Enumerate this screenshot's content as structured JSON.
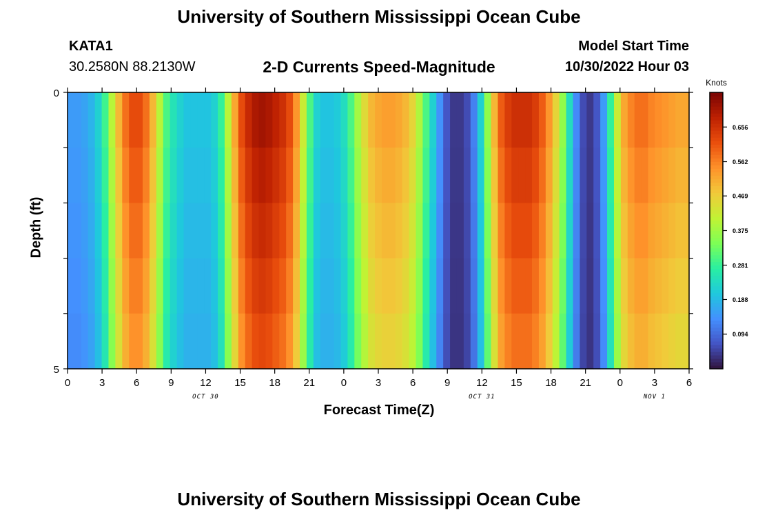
{
  "header": {
    "title_top": "University of Southern Mississippi Ocean Cube",
    "title_bottom": "University of Southern Mississippi Ocean Cube",
    "station": "KATA1",
    "coordinates": "30.2580N  88.2130W",
    "subtitle": "2-D Currents Speed-Magnitude",
    "model_start_label": "Model Start Time",
    "model_start_value": "10/30/2022 Hour 03"
  },
  "colors": {
    "colormap": [
      "#30123b",
      "#4454c4",
      "#4490fe",
      "#1fc8de",
      "#29efa2",
      "#7dff56",
      "#c1f334",
      "#f1ca3a",
      "#fe922a",
      "#ea4f0d",
      "#be2102",
      "#7a0403"
    ]
  },
  "chart_data": {
    "type": "heatmap",
    "title": "2-D Currents Speed-Magnitude",
    "xlabel": "Forecast Time(Z)",
    "ylabel": "Depth (ft)",
    "x_tick_labels": [
      "0",
      "3",
      "6",
      "9",
      "12",
      "15",
      "18",
      "21",
      "0",
      "3",
      "6",
      "9",
      "12",
      "15",
      "18",
      "21",
      "0",
      "3",
      "6"
    ],
    "x_hours_range": [
      0,
      54
    ],
    "date_labels": [
      {
        "text": "OCT 30",
        "hour": 12
      },
      {
        "text": "OCT 31",
        "hour": 36
      },
      {
        "text": "NOV 1",
        "hour": 51
      }
    ],
    "y_tick_labels": [
      "0",
      "5"
    ],
    "y_range": [
      0,
      5
    ],
    "depth_levels": 5,
    "colorbar": {
      "label": "Knots",
      "ticks": [
        "0.094",
        "0.188",
        "0.281",
        "0.375",
        "0.469",
        "0.562",
        "0.656"
      ],
      "tick_values": [
        0.094,
        0.188,
        0.281,
        0.375,
        0.469,
        0.562,
        0.656
      ],
      "range": [
        0,
        0.75
      ]
    },
    "surface_speed_knots": [
      0.15,
      0.15,
      0.16,
      0.18,
      0.22,
      0.29,
      0.4,
      0.5,
      0.58,
      0.62,
      0.62,
      0.58,
      0.5,
      0.4,
      0.3,
      0.25,
      0.22,
      0.2,
      0.2,
      0.2,
      0.2,
      0.22,
      0.28,
      0.4,
      0.52,
      0.62,
      0.67,
      0.7,
      0.71,
      0.7,
      0.68,
      0.66,
      0.62,
      0.54,
      0.42,
      0.3,
      0.22,
      0.2,
      0.2,
      0.21,
      0.24,
      0.3,
      0.38,
      0.45,
      0.5,
      0.52,
      0.53,
      0.53,
      0.52,
      0.5,
      0.46,
      0.39,
      0.3,
      0.22,
      0.14,
      0.07,
      0.04,
      0.04,
      0.06,
      0.12,
      0.22,
      0.36,
      0.5,
      0.6,
      0.64,
      0.66,
      0.66,
      0.66,
      0.64,
      0.6,
      0.54,
      0.46,
      0.36,
      0.24,
      0.13,
      0.06,
      0.04,
      0.07,
      0.15,
      0.28,
      0.42,
      0.52,
      0.56,
      0.58,
      0.58,
      0.56,
      0.55,
      0.54,
      0.53,
      0.52,
      0.52
    ],
    "depth_factors": [
      1.0,
      0.97,
      0.94,
      0.91,
      0.88
    ]
  }
}
